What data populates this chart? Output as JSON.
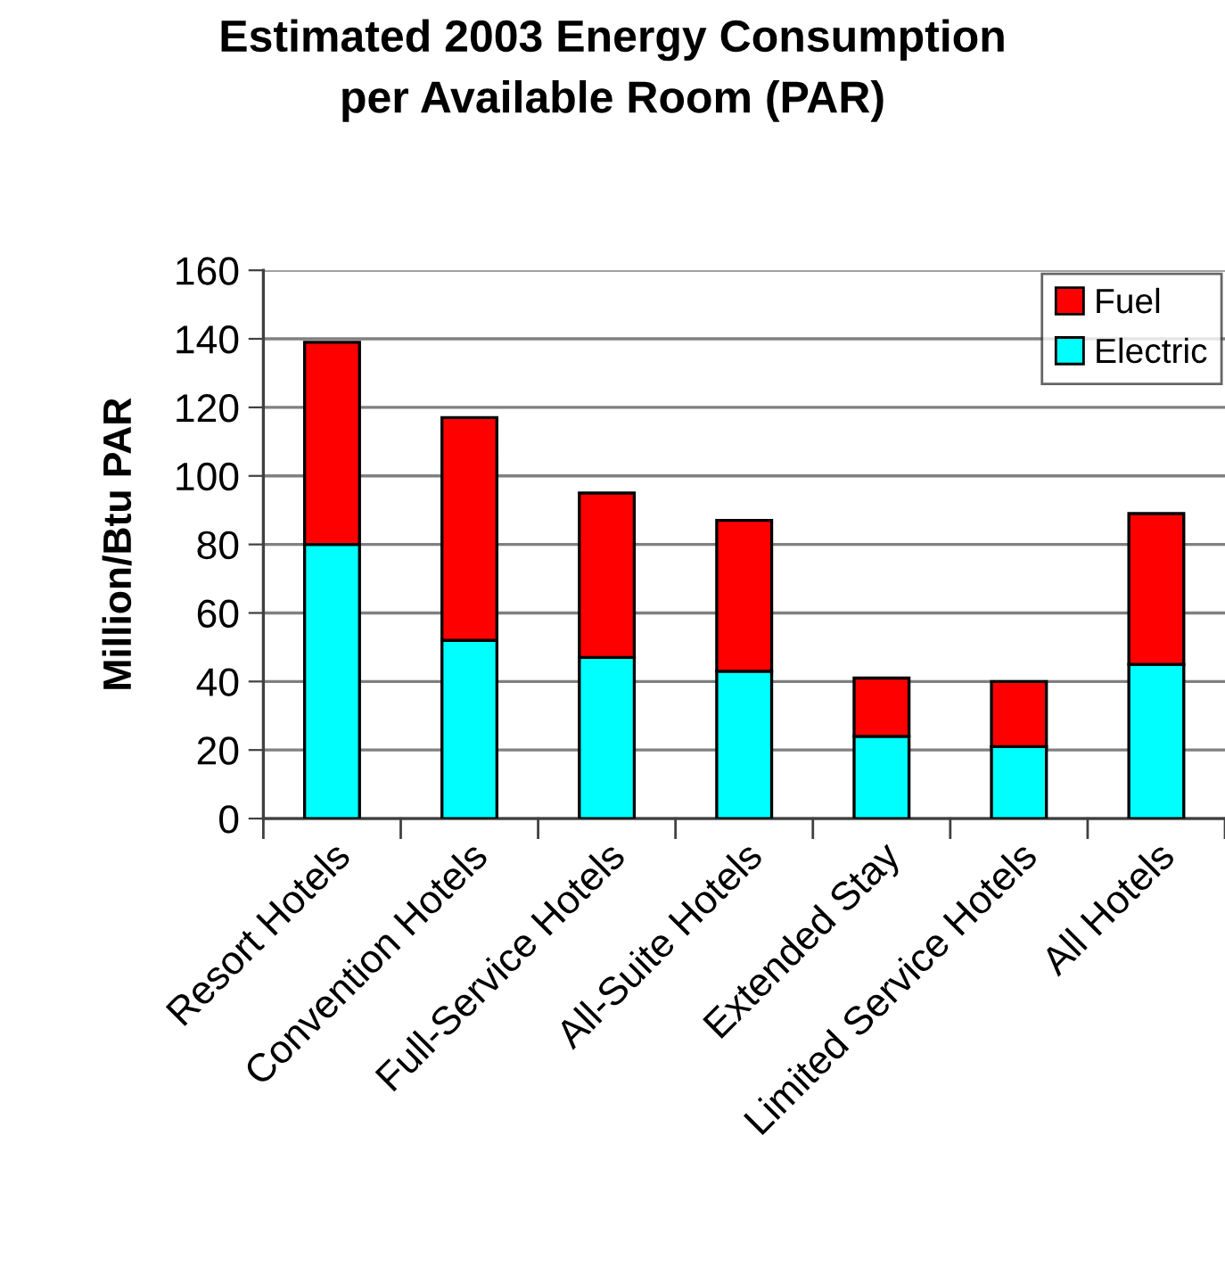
{
  "chart_data": {
    "type": "bar",
    "title": "Estimated 2003 Energy Consumption\nper Available Room (PAR)",
    "ylabel": "Million/Btu PAR",
    "categories": [
      "Resort Hotels",
      "Convention Hotels",
      "Full-Service Hotels",
      "All-Suite Hotels",
      "Extended Stay",
      "Limited Service Hotels",
      "All Hotels"
    ],
    "series": [
      {
        "name": "Electric",
        "color": "#00ffff",
        "values": [
          80,
          52,
          47,
          43,
          24,
          21,
          45
        ]
      },
      {
        "name": "Fuel",
        "color": "#ff0000",
        "values": [
          59,
          65,
          48,
          44,
          17,
          19,
          44
        ]
      }
    ],
    "stacked": true,
    "ylim": [
      0,
      160
    ],
    "yticks": [
      0,
      20,
      40,
      60,
      80,
      100,
      120,
      140,
      160
    ],
    "grid": "y",
    "legend": "top right"
  }
}
